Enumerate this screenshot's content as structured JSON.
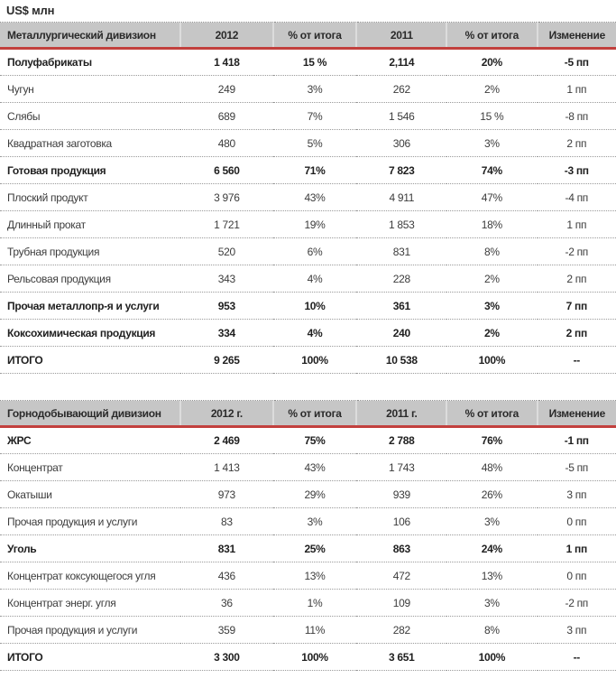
{
  "page": {
    "unit_label": "US$ млн"
  },
  "colors": {
    "accent_red": "#c2403d",
    "header_bg": "#c6c6c6",
    "dotted_line": "#9a9a9a"
  },
  "tables": [
    {
      "name": "Металлургический дивизион",
      "columns": [
        "Металлургический дивизион",
        "2012",
        "% от итога",
        "2011",
        "% от итога",
        "Изменение"
      ],
      "rows": [
        {
          "label": "Полуфабрикаты",
          "v2012": "1 418",
          "p2012": "15 %",
          "v2011": "2,114",
          "p2011": "20%",
          "change": "-5 пп",
          "bold": true
        },
        {
          "label": "Чугун",
          "v2012": "249",
          "p2012": "3%",
          "v2011": "262",
          "p2011": "2%",
          "change": "1 пп",
          "bold": false
        },
        {
          "label": "Слябы",
          "v2012": "689",
          "p2012": "7%",
          "v2011": "1 546",
          "p2011": "15 %",
          "change": "-8 пп",
          "bold": false
        },
        {
          "label": "Квадратная заготовка",
          "v2012": "480",
          "p2012": "5%",
          "v2011": "306",
          "p2011": "3%",
          "change": "2 пп",
          "bold": false
        },
        {
          "label": "Готовая продукция",
          "v2012": "6 560",
          "p2012": "71%",
          "v2011": "7 823",
          "p2011": "74%",
          "change": "-3 пп",
          "bold": true
        },
        {
          "label": "Плоский продукт",
          "v2012": "3 976",
          "p2012": "43%",
          "v2011": "4 911",
          "p2011": "47%",
          "change": "-4 пп",
          "bold": false
        },
        {
          "label": "Длинный прокат",
          "v2012": "1 721",
          "p2012": "19%",
          "v2011": "1 853",
          "p2011": "18%",
          "change": "1 пп",
          "bold": false
        },
        {
          "label": "Трубная продукция",
          "v2012": "520",
          "p2012": "6%",
          "v2011": "831",
          "p2011": "8%",
          "change": "-2 пп",
          "bold": false
        },
        {
          "label": "Рельсовая продукция",
          "v2012": "343",
          "p2012": "4%",
          "v2011": "228",
          "p2011": "2%",
          "change": "2 пп",
          "bold": false
        },
        {
          "label": "Прочая металлопр-я и услуги",
          "v2012": "953",
          "p2012": "10%",
          "v2011": "361",
          "p2011": "3%",
          "change": "7 пп",
          "bold": true
        },
        {
          "label": "Коксохимическая продукция",
          "v2012": "334",
          "p2012": "4%",
          "v2011": "240",
          "p2011": "2%",
          "change": "2 пп",
          "bold": true
        },
        {
          "label": "ИТОГО",
          "v2012": "9 265",
          "p2012": "100%",
          "v2011": "10 538",
          "p2011": "100%",
          "change": "--",
          "bold": true
        }
      ]
    },
    {
      "name": "Горнодобывающий дивизион",
      "columns": [
        "Горнодобывающий дивизион",
        "2012 г.",
        "% от итога",
        "2011 г.",
        "% от итога",
        "Изменение"
      ],
      "rows": [
        {
          "label": "ЖРС",
          "v2012": "2 469",
          "p2012": "75%",
          "v2011": "2 788",
          "p2011": "76%",
          "change": "-1 пп",
          "bold": true
        },
        {
          "label": "Концентрат",
          "v2012": "1 413",
          "p2012": "43%",
          "v2011": "1 743",
          "p2011": "48%",
          "change": "-5 пп",
          "bold": false
        },
        {
          "label": "Окатыши",
          "v2012": "973",
          "p2012": "29%",
          "v2011": "939",
          "p2011": "26%",
          "change": "3 пп",
          "bold": false
        },
        {
          "label": "Прочая продукция и  услуги",
          "v2012": "83",
          "p2012": "3%",
          "v2011": "106",
          "p2011": "3%",
          "change": "0 пп",
          "bold": false
        },
        {
          "label": "Уголь",
          "v2012": "831",
          "p2012": "25%",
          "v2011": "863",
          "p2011": "24%",
          "change": "1 пп",
          "bold": true
        },
        {
          "label": "Концентрат коксующегося угля",
          "v2012": "436",
          "p2012": "13%",
          "v2011": "472",
          "p2011": "13%",
          "change": "0 пп",
          "bold": false
        },
        {
          "label": "Концентрат энерг. угля",
          "v2012": "36",
          "p2012": "1%",
          "v2011": "109",
          "p2011": "3%",
          "change": "-2 пп",
          "bold": false
        },
        {
          "label": "Прочая продукция и услуги",
          "v2012": "359",
          "p2012": "11%",
          "v2011": "282",
          "p2011": "8%",
          "change": "3 пп",
          "bold": false
        },
        {
          "label": "ИТОГО",
          "v2012": "3 300",
          "p2012": "100%",
          "v2011": "3 651",
          "p2011": "100%",
          "change": "--",
          "bold": true
        }
      ]
    }
  ]
}
